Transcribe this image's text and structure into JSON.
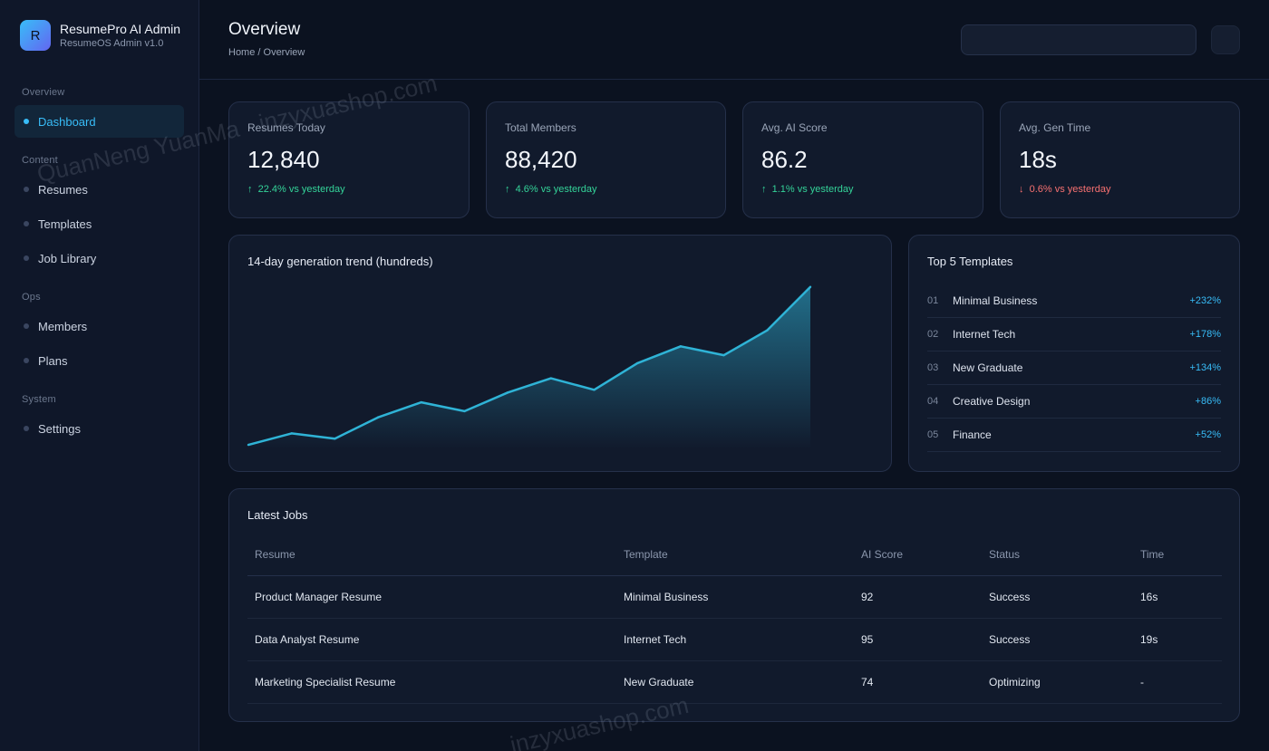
{
  "brand": {
    "logo_letter": "R",
    "name": "ResumePro AI Admin",
    "subtitle": "ResumeOS Admin v1.0"
  },
  "sidebar": {
    "sections": [
      {
        "label": "Overview",
        "items": [
          {
            "label": "Dashboard",
            "active": true
          }
        ]
      },
      {
        "label": "Content",
        "items": [
          {
            "label": "Resumes"
          },
          {
            "label": "Templates"
          },
          {
            "label": "Job Library"
          }
        ]
      },
      {
        "label": "Ops",
        "items": [
          {
            "label": "Members"
          },
          {
            "label": "Plans"
          }
        ]
      },
      {
        "label": "System",
        "items": [
          {
            "label": "Settings"
          }
        ]
      }
    ]
  },
  "header": {
    "title": "Overview",
    "breadcrumb": "Home / Overview"
  },
  "kpis": [
    {
      "label": "Resumes Today",
      "value": "12,840",
      "arrow": "↑",
      "delta": "22.4% vs yesterday",
      "trend": "up"
    },
    {
      "label": "Total Members",
      "value": "88,420",
      "arrow": "↑",
      "delta": "4.6% vs yesterday",
      "trend": "up"
    },
    {
      "label": "Avg. AI Score",
      "value": "86.2",
      "arrow": "↑",
      "delta": "1.1% vs yesterday",
      "trend": "up"
    },
    {
      "label": "Avg. Gen Time",
      "value": "18s",
      "arrow": "↓",
      "delta": "0.6% vs yesterday",
      "trend": "down"
    }
  ],
  "chart_data": {
    "type": "area",
    "title": "14-day generation trend (hundreds)",
    "x": [
      1,
      2,
      3,
      4,
      5,
      6,
      7,
      8,
      9,
      10,
      11,
      12,
      13,
      14
    ],
    "values": [
      5,
      18,
      12,
      36,
      53,
      43,
      64,
      80,
      67,
      97,
      116,
      106,
      134,
      183
    ],
    "ylim": [
      0,
      200
    ],
    "grid": false,
    "line_color": "#2fb3d6"
  },
  "top_templates": {
    "title": "Top 5 Templates",
    "items": [
      {
        "rank": "01",
        "name": "Minimal Business",
        "growth": "+232%"
      },
      {
        "rank": "02",
        "name": "Internet Tech",
        "growth": "+178%"
      },
      {
        "rank": "03",
        "name": "New Graduate",
        "growth": "+134%"
      },
      {
        "rank": "04",
        "name": "Creative Design",
        "growth": "+86%"
      },
      {
        "rank": "05",
        "name": "Finance",
        "growth": "+52%"
      }
    ]
  },
  "jobs": {
    "title": "Latest Jobs",
    "columns": [
      "Resume",
      "Template",
      "AI Score",
      "Status",
      "Time"
    ],
    "rows": [
      {
        "resume": "Product Manager Resume",
        "template": "Minimal Business",
        "score": "92",
        "status": "Success",
        "status_type": "success",
        "time": "16s"
      },
      {
        "resume": "Data Analyst Resume",
        "template": "Internet Tech",
        "score": "95",
        "status": "Success",
        "status_type": "success",
        "time": "19s"
      },
      {
        "resume": "Marketing Specialist Resume",
        "template": "New Graduate",
        "score": "74",
        "status": "Optimizing",
        "status_type": "optimizing",
        "time": "-"
      }
    ]
  },
  "watermarks": [
    "QuanNeng YuanMa · inzyxuashop.com",
    "inzyxuashop.com"
  ],
  "colors": {
    "accent": "#38bdf8",
    "up": "#34d399",
    "down": "#f87171",
    "optimizing": "#fbbf24"
  }
}
